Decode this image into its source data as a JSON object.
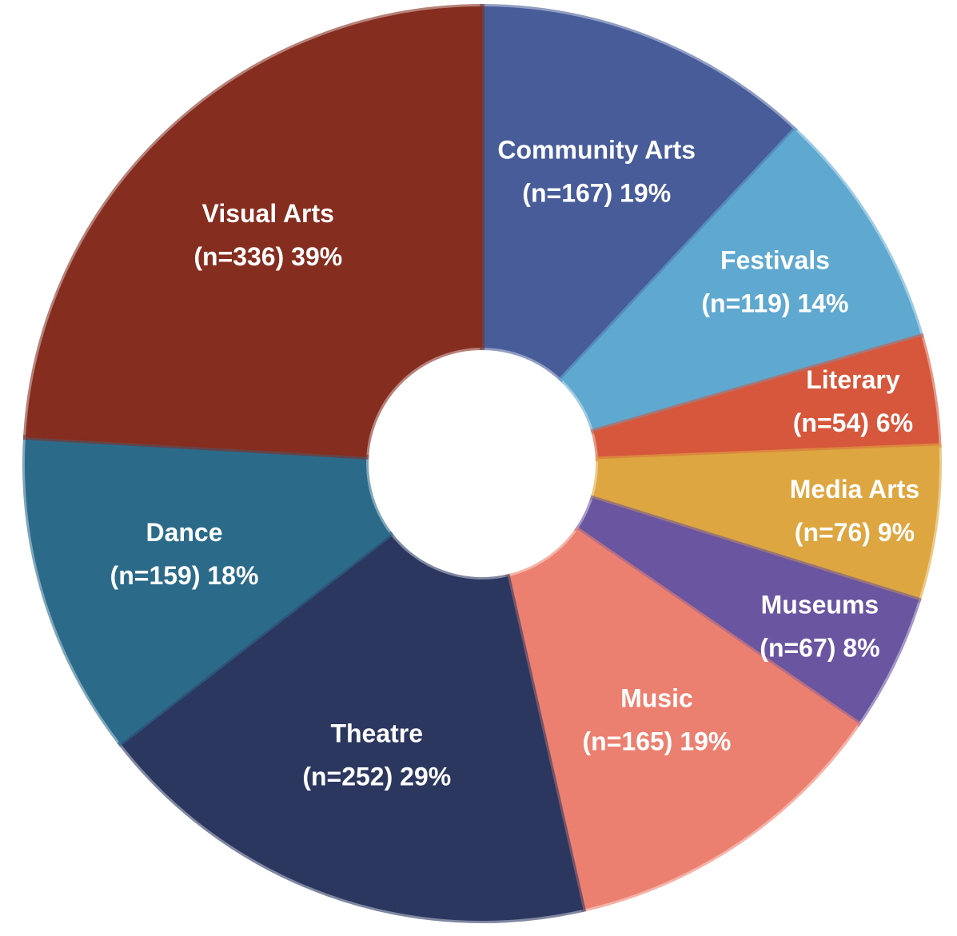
{
  "chart_data": {
    "type": "donut",
    "categories": [
      "Community Arts",
      "Festivals",
      "Literary",
      "Media Arts",
      "Museums",
      "Music",
      "Theatre",
      "Dance",
      "Visual Arts"
    ],
    "values": [
      167,
      119,
      54,
      76,
      67,
      165,
      252,
      159,
      336
    ],
    "value_labels": [
      "(n=167) 19%",
      "(n=119) 14%",
      "(n=54) 6%",
      "(n=76) 9%",
      "(n=67) 8%",
      "(n=165) 19%",
      "(n=252) 29%",
      "(n=159) 18%",
      "(n=336) 39%"
    ],
    "colors": [
      "#475c99",
      "#5fa8d0",
      "#d6573c",
      "#dea640",
      "#6a55a0",
      "#ec8070",
      "#2c3760",
      "#2c6a8a",
      "#852d1f"
    ]
  }
}
